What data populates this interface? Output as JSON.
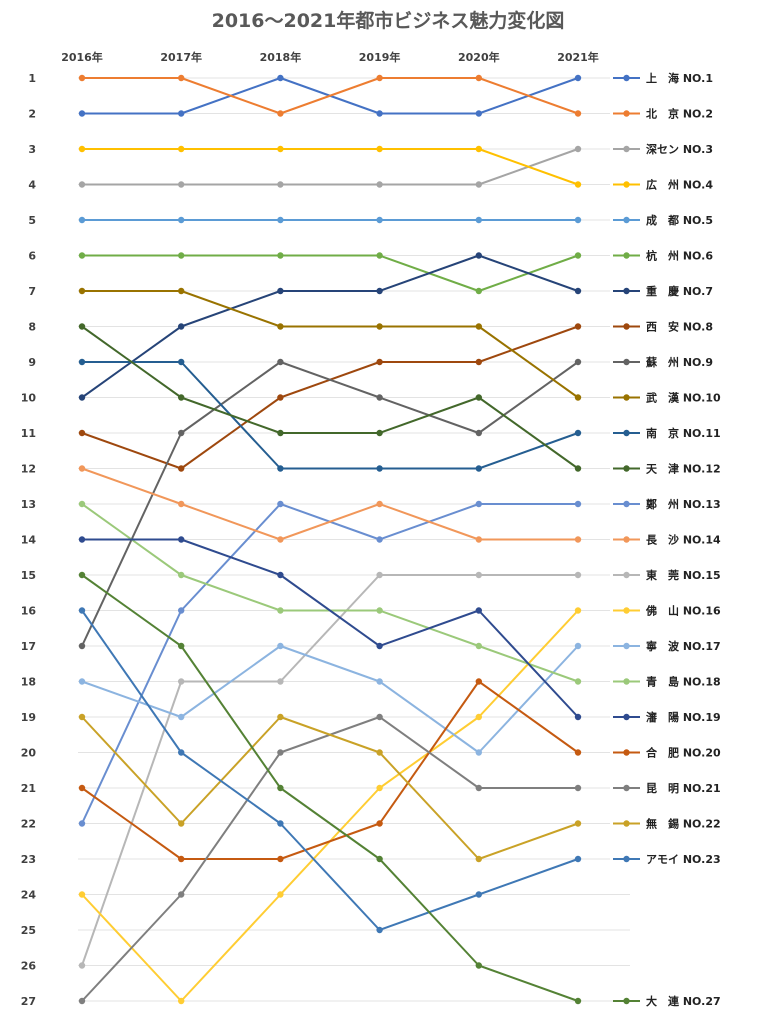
{
  "chart_data": {
    "type": "line",
    "title": "2016～2021年都市ビジネス魅力変化図",
    "x": [
      "2016年",
      "2017年",
      "2018年",
      "2019年",
      "2020年",
      "2021年"
    ],
    "ylim": [
      1,
      27
    ],
    "y_inverted": true,
    "y_ticks": [
      1,
      2,
      3,
      4,
      5,
      6,
      7,
      8,
      9,
      10,
      11,
      12,
      13,
      14,
      15,
      16,
      17,
      18,
      19,
      20,
      21,
      22,
      23,
      24,
      25,
      26,
      27
    ],
    "grid": true,
    "legend_position": "right",
    "series": [
      {
        "name": "上　海 NO.1",
        "color": "#4472C4",
        "values": [
          2,
          2,
          1,
          2,
          2,
          1
        ]
      },
      {
        "name": "北　京 NO.2",
        "color": "#ED7D31",
        "values": [
          1,
          1,
          2,
          1,
          1,
          2
        ]
      },
      {
        "name": "深セン NO.3",
        "color": "#A5A5A5",
        "values": [
          4,
          4,
          4,
          4,
          4,
          3
        ]
      },
      {
        "name": "広　州 NO.4",
        "color": "#FFC000",
        "values": [
          3,
          3,
          3,
          3,
          3,
          4
        ]
      },
      {
        "name": "成　都 NO.5",
        "color": "#5B9BD5",
        "values": [
          5,
          5,
          5,
          5,
          5,
          5
        ]
      },
      {
        "name": "杭　州 NO.6",
        "color": "#70AD47",
        "values": [
          6,
          6,
          6,
          6,
          7,
          6
        ]
      },
      {
        "name": "重　慶 NO.7",
        "color": "#264478",
        "values": [
          10,
          8,
          7,
          7,
          6,
          7
        ]
      },
      {
        "name": "西　安 NO.8",
        "color": "#9E480E",
        "values": [
          11,
          12,
          10,
          9,
          9,
          8
        ]
      },
      {
        "name": "蘇　州 NO.9",
        "color": "#636363",
        "values": [
          17,
          11,
          9,
          10,
          11,
          9
        ]
      },
      {
        "name": "武　漢 NO.10",
        "color": "#997300",
        "values": [
          7,
          7,
          8,
          8,
          8,
          10
        ]
      },
      {
        "name": "南　京 NO.11",
        "color": "#255E91",
        "values": [
          9,
          9,
          12,
          12,
          12,
          11
        ]
      },
      {
        "name": "天　津 NO.12",
        "color": "#43682B",
        "values": [
          8,
          10,
          11,
          11,
          10,
          12
        ]
      },
      {
        "name": "鄭　州 NO.13",
        "color": "#698ED0",
        "values": [
          22,
          16,
          13,
          14,
          13,
          13
        ]
      },
      {
        "name": "長　沙 NO.14",
        "color": "#F1975A",
        "values": [
          12,
          13,
          14,
          13,
          14,
          14
        ]
      },
      {
        "name": "東　莞 NO.15",
        "color": "#B7B7B7",
        "values": [
          26,
          18,
          18,
          15,
          15,
          15
        ]
      },
      {
        "name": "佛　山 NO.16",
        "color": "#FFCD33",
        "values": [
          24,
          27,
          24,
          21,
          19,
          16
        ]
      },
      {
        "name": "寧　波 NO.17",
        "color": "#8CB4E0",
        "values": [
          18,
          19,
          17,
          18,
          20,
          17
        ]
      },
      {
        "name": "青　島 NO.18",
        "color": "#9BC97A",
        "values": [
          13,
          15,
          16,
          16,
          17,
          18
        ]
      },
      {
        "name": "瀋　陽 NO.19",
        "color": "#2F4B8F",
        "values": [
          14,
          14,
          15,
          17,
          16,
          19
        ]
      },
      {
        "name": "合　肥 NO.20",
        "color": "#C55A11",
        "values": [
          21,
          23,
          23,
          22,
          18,
          20
        ]
      },
      {
        "name": "昆　明 NO.21",
        "color": "#7F7F7F",
        "values": [
          27,
          24,
          20,
          19,
          21,
          21
        ]
      },
      {
        "name": "無　錫 NO.22",
        "color": "#C9A227",
        "values": [
          19,
          22,
          19,
          20,
          23,
          22
        ]
      },
      {
        "name": "アモイ NO.23",
        "color": "#3F78B5",
        "values": [
          16,
          20,
          22,
          25,
          24,
          23
        ]
      },
      {
        "name": "大　連 NO.27",
        "color": "#548235",
        "values": [
          15,
          17,
          21,
          23,
          26,
          27
        ]
      }
    ]
  }
}
